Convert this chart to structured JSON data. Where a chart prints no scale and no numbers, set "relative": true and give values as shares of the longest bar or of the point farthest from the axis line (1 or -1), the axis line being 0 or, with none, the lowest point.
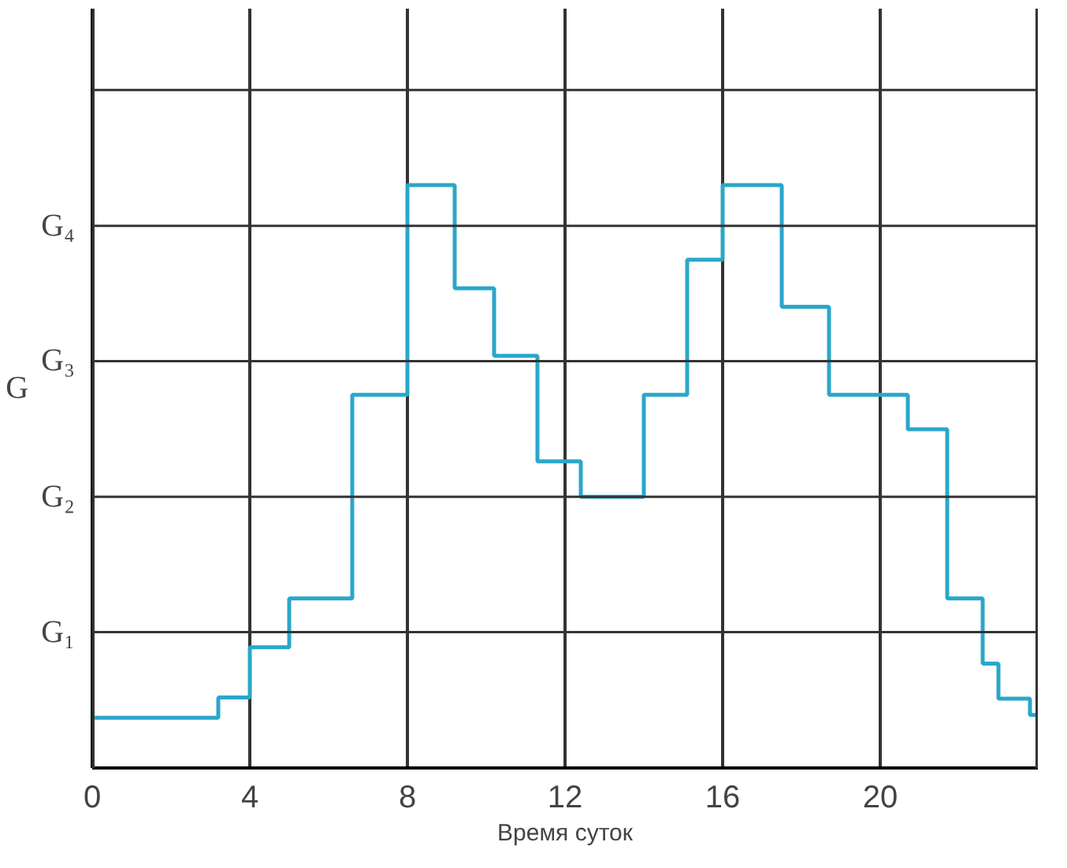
{
  "chart_data": {
    "type": "step",
    "xlabel": "Время суток",
    "ylabel": "G",
    "relative": true,
    "x": [
      0,
      3.2,
      4,
      5,
      6.6,
      8,
      9.2,
      10.2,
      11.3,
      12.4,
      14,
      15.1,
      16,
      17.5,
      18.7,
      20.7,
      21.7,
      22.6,
      23,
      23.8,
      24
    ],
    "series": [
      {
        "color": "#2aa7c9",
        "values": [
          0.086,
          0.121,
          0.207,
          0.291,
          0.64,
          1,
          0.823,
          0.707,
          0.526,
          0.465,
          0.64,
          0.872,
          1,
          0.791,
          0.64,
          0.581,
          0.291,
          0.179,
          0.119,
          0.091,
          0.091
        ]
      }
    ],
    "xlim": [
      0,
      24
    ],
    "xticks": [
      0,
      4,
      8,
      12,
      16,
      20,
      {
        "value": 24,
        "label": null
      }
    ],
    "ref_lines": [
      {
        "axis": "y",
        "value": 0.233,
        "label": "G₁"
      },
      {
        "axis": "y",
        "value": 0.465,
        "label": "G₂"
      },
      {
        "axis": "y",
        "value": 0.698,
        "label": "G₃"
      },
      {
        "axis": "y",
        "value": 0.93,
        "label": "G₄"
      },
      {
        "axis": "y",
        "value": 1.163,
        "label": null
      }
    ],
    "grid": "x"
  }
}
